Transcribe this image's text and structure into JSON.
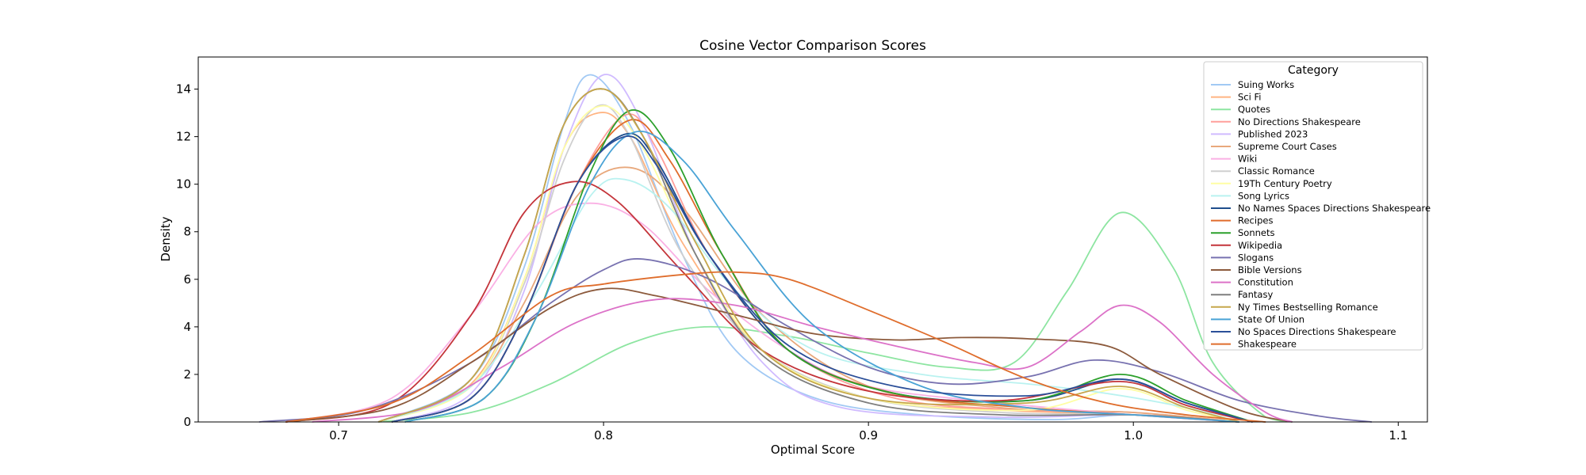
{
  "chart_data": {
    "type": "line",
    "title": "Cosine Vector Comparison Scores",
    "xlabel": "Optimal Score",
    "ylabel": "Density",
    "xlim": [
      0.647,
      1.111
    ],
    "ylim": [
      0,
      15.35
    ],
    "xticks": [
      0.7,
      0.8,
      0.9,
      1.0,
      1.1
    ],
    "yticks": [
      0,
      2,
      4,
      6,
      8,
      10,
      12,
      14
    ],
    "grid": false,
    "legend": {
      "title": "Category",
      "position": "top-right"
    },
    "series": [
      {
        "name": "Suing Works",
        "color": "#a1c9f4",
        "points": [
          [
            0.715,
            0
          ],
          [
            0.75,
            1.8
          ],
          [
            0.77,
            6.5
          ],
          [
            0.785,
            12.5
          ],
          [
            0.795,
            14.6
          ],
          [
            0.81,
            12.5
          ],
          [
            0.83,
            7
          ],
          [
            0.85,
            3
          ],
          [
            0.88,
            1
          ],
          [
            0.92,
            0.3
          ],
          [
            0.97,
            0.1
          ],
          [
            1.0,
            0.3
          ],
          [
            1.04,
            0
          ]
        ]
      },
      {
        "name": "Sci Fi",
        "color": "#ffb482",
        "points": [
          [
            0.715,
            0
          ],
          [
            0.75,
            1.6
          ],
          [
            0.77,
            6
          ],
          [
            0.785,
            11.5
          ],
          [
            0.798,
            13
          ],
          [
            0.81,
            12
          ],
          [
            0.83,
            7.5
          ],
          [
            0.86,
            3
          ],
          [
            0.9,
            1
          ],
          [
            0.95,
            0.5
          ],
          [
            1.0,
            0.3
          ],
          [
            1.04,
            0
          ]
        ]
      },
      {
        "name": "Quotes",
        "color": "#8de5a1",
        "points": [
          [
            0.715,
            0
          ],
          [
            0.75,
            0.4
          ],
          [
            0.78,
            1.6
          ],
          [
            0.81,
            3.3
          ],
          [
            0.838,
            4.0
          ],
          [
            0.87,
            3.6
          ],
          [
            0.9,
            2.9
          ],
          [
            0.93,
            2.3
          ],
          [
            0.955,
            2.5
          ],
          [
            0.975,
            5.5
          ],
          [
            0.995,
            8.8
          ],
          [
            1.015,
            6.5
          ],
          [
            1.03,
            2.5
          ],
          [
            1.05,
            0.2
          ],
          [
            1.06,
            0
          ]
        ]
      },
      {
        "name": "No Directions Shakespeare",
        "color": "#ff9f9b",
        "points": [
          [
            0.72,
            0
          ],
          [
            0.75,
            1
          ],
          [
            0.77,
            4.5
          ],
          [
            0.79,
            10
          ],
          [
            0.808,
            12.9
          ],
          [
            0.82,
            11.5
          ],
          [
            0.84,
            7
          ],
          [
            0.87,
            3
          ],
          [
            0.91,
            1
          ],
          [
            0.96,
            0.5
          ],
          [
            1.0,
            0.4
          ],
          [
            1.04,
            0
          ]
        ]
      },
      {
        "name": "Published 2023",
        "color": "#d0bbff",
        "points": [
          [
            0.72,
            0
          ],
          [
            0.75,
            1.2
          ],
          [
            0.77,
            5.5
          ],
          [
            0.785,
            11.5
          ],
          [
            0.8,
            14.6
          ],
          [
            0.815,
            12.5
          ],
          [
            0.835,
            7
          ],
          [
            0.86,
            2.5
          ],
          [
            0.89,
            0.6
          ],
          [
            0.95,
            0.2
          ],
          [
            1.0,
            0.3
          ],
          [
            1.04,
            0
          ]
        ]
      },
      {
        "name": "Supreme Court Cases",
        "color": "#e8a87c",
        "points": [
          [
            0.715,
            0
          ],
          [
            0.75,
            1.5
          ],
          [
            0.77,
            5
          ],
          [
            0.79,
            9.5
          ],
          [
            0.81,
            10.7
          ],
          [
            0.83,
            9
          ],
          [
            0.86,
            4.5
          ],
          [
            0.9,
            1.5
          ],
          [
            0.95,
            0.6
          ],
          [
            1.0,
            0.4
          ],
          [
            1.04,
            0
          ]
        ]
      },
      {
        "name": "Wiki",
        "color": "#fab0e4",
        "points": [
          [
            0.68,
            0
          ],
          [
            0.72,
            1
          ],
          [
            0.75,
            4.5
          ],
          [
            0.775,
            8.3
          ],
          [
            0.795,
            9.2
          ],
          [
            0.815,
            8.3
          ],
          [
            0.84,
            5.5
          ],
          [
            0.87,
            3
          ],
          [
            0.9,
            1.5
          ],
          [
            0.95,
            0.8
          ],
          [
            1.0,
            0.3
          ],
          [
            1.04,
            0
          ]
        ]
      },
      {
        "name": "Classic Romance",
        "color": "#cfcfcf",
        "points": [
          [
            0.715,
            0
          ],
          [
            0.75,
            1.5
          ],
          [
            0.77,
            5.8
          ],
          [
            0.785,
            11
          ],
          [
            0.798,
            13.3
          ],
          [
            0.81,
            12
          ],
          [
            0.83,
            7
          ],
          [
            0.86,
            3
          ],
          [
            0.9,
            1
          ],
          [
            0.95,
            0.4
          ],
          [
            1.0,
            0.3
          ],
          [
            1.04,
            0
          ]
        ]
      },
      {
        "name": "19Th Century Poetry",
        "color": "#fffea3",
        "points": [
          [
            0.715,
            0
          ],
          [
            0.75,
            1.5
          ],
          [
            0.77,
            6
          ],
          [
            0.785,
            11.5
          ],
          [
            0.8,
            13.3
          ],
          [
            0.815,
            11.5
          ],
          [
            0.835,
            7
          ],
          [
            0.86,
            3
          ],
          [
            0.9,
            1
          ],
          [
            0.96,
            0.5
          ],
          [
            0.995,
            1.4
          ],
          [
            1.02,
            0.5
          ],
          [
            1.04,
            0
          ]
        ]
      },
      {
        "name": "Song Lyrics",
        "color": "#b9f2f0",
        "points": [
          [
            0.715,
            0
          ],
          [
            0.75,
            1.5
          ],
          [
            0.775,
            5.5
          ],
          [
            0.795,
            9.5
          ],
          [
            0.808,
            10.2
          ],
          [
            0.825,
            9
          ],
          [
            0.85,
            5.5
          ],
          [
            0.88,
            3
          ],
          [
            0.92,
            2
          ],
          [
            0.96,
            1.6
          ],
          [
            0.99,
            1.2
          ],
          [
            1.02,
            0.6
          ],
          [
            1.04,
            0
          ]
        ]
      },
      {
        "name": "No Names Spaces Directions Shakespeare",
        "color": "#1f4e8c",
        "points": [
          [
            0.72,
            0
          ],
          [
            0.75,
            1
          ],
          [
            0.77,
            4.5
          ],
          [
            0.79,
            10
          ],
          [
            0.808,
            12.1
          ],
          [
            0.82,
            11
          ],
          [
            0.84,
            7
          ],
          [
            0.87,
            3
          ],
          [
            0.91,
            1.2
          ],
          [
            0.96,
            0.9
          ],
          [
            0.995,
            1.8
          ],
          [
            1.02,
            0.8
          ],
          [
            1.045,
            0
          ]
        ]
      },
      {
        "name": "Recipes",
        "color": "#e06c2c",
        "points": [
          [
            0.72,
            0
          ],
          [
            0.75,
            1
          ],
          [
            0.77,
            4.5
          ],
          [
            0.79,
            10
          ],
          [
            0.81,
            12.7
          ],
          [
            0.825,
            11
          ],
          [
            0.845,
            7
          ],
          [
            0.87,
            3
          ],
          [
            0.91,
            1.2
          ],
          [
            0.96,
            0.6
          ],
          [
            1.0,
            0.3
          ],
          [
            1.04,
            0
          ]
        ]
      },
      {
        "name": "Sonnets",
        "color": "#2ca02c",
        "points": [
          [
            0.725,
            0
          ],
          [
            0.755,
            1
          ],
          [
            0.775,
            4.5
          ],
          [
            0.795,
            10.5
          ],
          [
            0.81,
            13.1
          ],
          [
            0.825,
            11.5
          ],
          [
            0.845,
            7
          ],
          [
            0.87,
            3
          ],
          [
            0.91,
            1.2
          ],
          [
            0.96,
            0.9
          ],
          [
            0.995,
            2.0
          ],
          [
            1.02,
            0.9
          ],
          [
            1.045,
            0
          ]
        ]
      },
      {
        "name": "Wikipedia",
        "color": "#c4343a",
        "points": [
          [
            0.68,
            0
          ],
          [
            0.72,
            0.8
          ],
          [
            0.75,
            4.5
          ],
          [
            0.77,
            8.8
          ],
          [
            0.788,
            10.1
          ],
          [
            0.805,
            9.3
          ],
          [
            0.83,
            6.3
          ],
          [
            0.86,
            3
          ],
          [
            0.9,
            1.3
          ],
          [
            0.95,
            0.9
          ],
          [
            0.995,
            1.7
          ],
          [
            1.02,
            0.7
          ],
          [
            1.045,
            0
          ]
        ]
      },
      {
        "name": "Slogans",
        "color": "#7872b0",
        "points": [
          [
            0.67,
            0
          ],
          [
            0.71,
            0.5
          ],
          [
            0.75,
            2.5
          ],
          [
            0.78,
            5
          ],
          [
            0.8,
            6.4
          ],
          [
            0.815,
            6.85
          ],
          [
            0.84,
            6
          ],
          [
            0.87,
            4
          ],
          [
            0.9,
            2.3
          ],
          [
            0.93,
            1.6
          ],
          [
            0.96,
            1.9
          ],
          [
            0.985,
            2.6
          ],
          [
            1.01,
            2.1
          ],
          [
            1.04,
            0.9
          ],
          [
            1.07,
            0.25
          ],
          [
            1.09,
            0
          ]
        ]
      },
      {
        "name": "Bible Versions",
        "color": "#8c5a3c",
        "points": [
          [
            0.68,
            0
          ],
          [
            0.72,
            0.6
          ],
          [
            0.75,
            2.5
          ],
          [
            0.78,
            4.8
          ],
          [
            0.8,
            5.6
          ],
          [
            0.82,
            5.3
          ],
          [
            0.85,
            4.5
          ],
          [
            0.88,
            3.7
          ],
          [
            0.91,
            3.45
          ],
          [
            0.935,
            3.55
          ],
          [
            0.96,
            3.5
          ],
          [
            0.99,
            3.2
          ],
          [
            1.01,
            2
          ],
          [
            1.04,
            0.5
          ],
          [
            1.06,
            0
          ]
        ]
      },
      {
        "name": "Constitution",
        "color": "#dc72c8",
        "points": [
          [
            0.69,
            0
          ],
          [
            0.73,
            0.5
          ],
          [
            0.76,
            2.2
          ],
          [
            0.79,
            4.2
          ],
          [
            0.82,
            5.15
          ],
          [
            0.85,
            4.9
          ],
          [
            0.88,
            4
          ],
          [
            0.91,
            3.2
          ],
          [
            0.94,
            2.5
          ],
          [
            0.96,
            2.3
          ],
          [
            0.98,
            3.8
          ],
          [
            0.995,
            4.9
          ],
          [
            1.01,
            4.2
          ],
          [
            1.03,
            2
          ],
          [
            1.05,
            0.4
          ],
          [
            1.06,
            0
          ]
        ]
      },
      {
        "name": "Fantasy",
        "color": "#7f7f7f",
        "points": [
          [
            0.715,
            0
          ],
          [
            0.75,
            1.8
          ],
          [
            0.77,
            7
          ],
          [
            0.785,
            12.5
          ],
          [
            0.8,
            14.0
          ],
          [
            0.815,
            12
          ],
          [
            0.835,
            7
          ],
          [
            0.86,
            2.8
          ],
          [
            0.9,
            0.8
          ],
          [
            0.95,
            0.3
          ],
          [
            1.0,
            0.3
          ],
          [
            1.04,
            0
          ]
        ]
      },
      {
        "name": "Ny Times Bestselling Romance",
        "color": "#c6a74c",
        "points": [
          [
            0.715,
            0
          ],
          [
            0.75,
            1.8
          ],
          [
            0.77,
            7
          ],
          [
            0.785,
            12.5
          ],
          [
            0.8,
            14.0
          ],
          [
            0.815,
            12
          ],
          [
            0.835,
            7.5
          ],
          [
            0.86,
            3
          ],
          [
            0.9,
            1
          ],
          [
            0.96,
            0.8
          ],
          [
            0.995,
            1.5
          ],
          [
            1.02,
            0.6
          ],
          [
            1.04,
            0
          ]
        ]
      },
      {
        "name": "State Of Union",
        "color": "#4aa3d6",
        "points": [
          [
            0.725,
            0
          ],
          [
            0.755,
            1
          ],
          [
            0.775,
            4.5
          ],
          [
            0.795,
            10
          ],
          [
            0.812,
            12.2
          ],
          [
            0.83,
            11
          ],
          [
            0.85,
            8
          ],
          [
            0.88,
            4
          ],
          [
            0.92,
            1.5
          ],
          [
            0.96,
            0.6
          ],
          [
            1.0,
            0.3
          ],
          [
            1.04,
            0
          ]
        ]
      },
      {
        "name": "No Spaces Directions Shakespeare",
        "color": "#2b4f99",
        "points": [
          [
            0.72,
            0
          ],
          [
            0.75,
            1
          ],
          [
            0.77,
            4.5
          ],
          [
            0.79,
            10
          ],
          [
            0.808,
            12.0
          ],
          [
            0.82,
            10.8
          ],
          [
            0.84,
            7
          ],
          [
            0.87,
            3.2
          ],
          [
            0.91,
            1.5
          ],
          [
            0.96,
            1.1
          ],
          [
            0.995,
            1.8
          ],
          [
            1.02,
            0.8
          ],
          [
            1.045,
            0
          ]
        ]
      },
      {
        "name": "Shakespeare",
        "color": "#df6d2c",
        "points": [
          [
            0.68,
            0
          ],
          [
            0.72,
            0.8
          ],
          [
            0.75,
            2.8
          ],
          [
            0.78,
            5.3
          ],
          [
            0.8,
            5.8
          ],
          [
            0.83,
            6.2
          ],
          [
            0.85,
            6.3
          ],
          [
            0.87,
            6
          ],
          [
            0.9,
            4.7
          ],
          [
            0.93,
            3.3
          ],
          [
            0.96,
            1.8
          ],
          [
            0.99,
            0.8
          ],
          [
            1.02,
            0.3
          ],
          [
            1.05,
            0
          ]
        ]
      }
    ]
  }
}
